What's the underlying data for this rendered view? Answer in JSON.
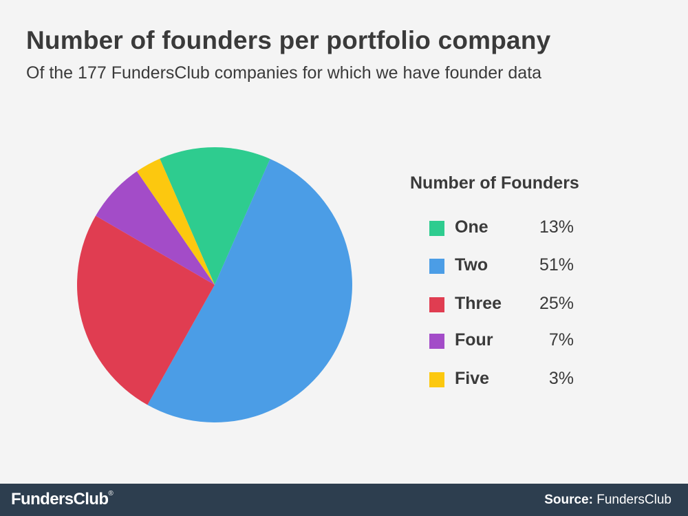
{
  "header": {
    "title": "Number of founders per portfolio company",
    "subtitle": "Of the 177 FundersClub companies for which we have founder data"
  },
  "chart_data": {
    "type": "pie",
    "title": "Number of founders per portfolio company",
    "subtitle": "Of the 177 FundersClub companies for which we have founder data",
    "legend_title": "Number of Founders",
    "legend_position": "right",
    "slices": [
      {
        "label": "One",
        "value": 13,
        "pct_label": "13%",
        "color": "#2ecc8f"
      },
      {
        "label": "Two",
        "value": 51,
        "pct_label": "51%",
        "color": "#4b9de6"
      },
      {
        "label": "Three",
        "value": 25,
        "pct_label": "25%",
        "color": "#e03d51"
      },
      {
        "label": "Four",
        "value": 7,
        "pct_label": "7%",
        "color": "#a34cc8"
      },
      {
        "label": "Five",
        "value": 3,
        "pct_label": "3%",
        "color": "#fcc80f"
      }
    ]
  },
  "footer": {
    "brand": "FundersClub",
    "brand_mark": "®",
    "source_label": "Source:",
    "source_value": "FundersClub",
    "background": "#2d3e4f"
  }
}
